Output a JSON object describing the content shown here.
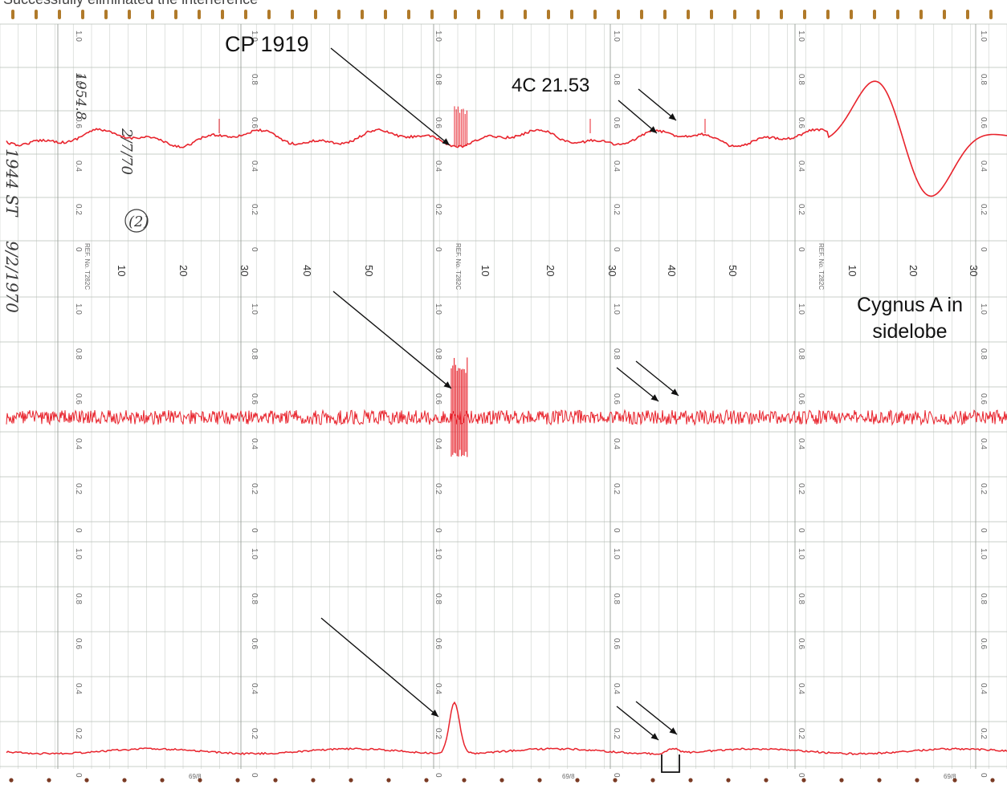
{
  "caption": "Successfully eliminated the interference",
  "annotations": {
    "pulsar": "CP 1919",
    "source": "4C 21.53",
    "cygnus": "Cygnus A in sidelobe"
  },
  "chart_paper": {
    "ref_label": "REF. No. T282C",
    "scale_ticks": [
      "0",
      "0.2",
      "0.4",
      "0.6",
      "0.8",
      "1.0"
    ],
    "minute_labels": [
      "10",
      "20",
      "30",
      "40",
      "50",
      "10",
      "20",
      "30",
      "40",
      "50",
      "10",
      "20",
      "30"
    ],
    "footer_code": "69/8",
    "trace_color": "#e8232c",
    "grid_color": "#b9bfb9",
    "ink_color": "#6a6a6a"
  },
  "handwriting": [
    "1954.8",
    "2/7/70",
    "9/2/1970",
    "1944 ST",
    "(2)"
  ]
}
